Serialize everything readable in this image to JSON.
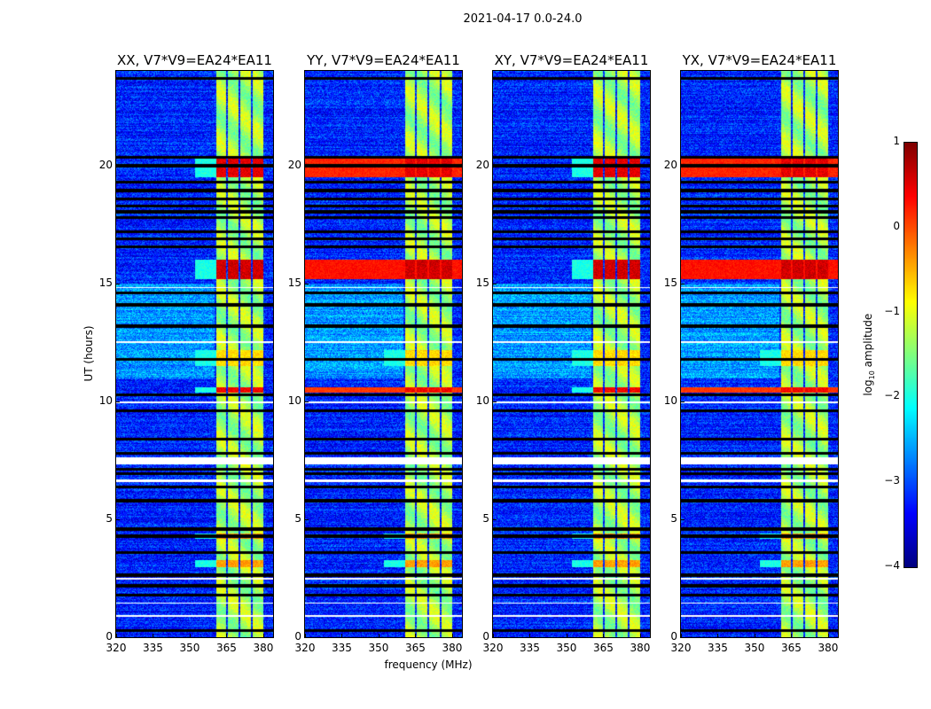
{
  "suptitle": "2021-04-17 0.0-24.0",
  "chart_data": {
    "type": "heatmap",
    "suptitle": "2021-04-17 0.0-24.0",
    "xlabel": "frequency (MHz)",
    "ylabel": "UT (hours)",
    "xlim": [
      320,
      384
    ],
    "ylim": [
      0,
      24
    ],
    "xticks": [
      "320",
      "335",
      "350",
      "365",
      "380"
    ],
    "xtick_values": [
      320,
      335,
      350,
      365,
      380
    ],
    "yticks": [
      "0",
      "5",
      "10",
      "15",
      "20"
    ],
    "ytick_values": [
      0,
      5,
      10,
      15,
      20
    ],
    "panels": [
      {
        "title": "XX, V7*V9=EA24*EA11",
        "pol": "XX",
        "full_band_events": false
      },
      {
        "title": "YY, V7*V9=EA24*EA11",
        "pol": "YY",
        "full_band_events": true
      },
      {
        "title": "XY, V7*V9=EA24*EA11",
        "pol": "XY",
        "full_band_events": false
      },
      {
        "title": "YX, V7*V9=EA24*EA11",
        "pol": "YX",
        "full_band_events": true
      }
    ],
    "bright_band_mhz": [
      360.5,
      380
    ],
    "band_gaps_mhz": [
      365,
      370,
      375
    ],
    "background_level": -3.2,
    "band_level": -1.3,
    "events_hours": [
      [
        15.2,
        16.0,
        0.6
      ],
      [
        19.5,
        20.3,
        0.5
      ],
      [
        10.4,
        10.6,
        0.4
      ],
      [
        4.2,
        4.4,
        -0.3
      ],
      [
        3.0,
        3.3,
        -0.4
      ],
      [
        11.5,
        12.2,
        -0.7
      ]
    ],
    "flagged_black_hours": [
      23.7,
      20.35,
      20.0,
      19.3,
      18.95,
      18.6,
      18.3,
      18.05,
      17.8,
      17.2,
      16.9,
      16.55,
      14.6,
      14.1,
      13.2,
      11.8,
      10.3,
      9.6,
      8.4,
      7.8,
      7.15,
      6.95,
      6.4,
      5.8,
      4.6,
      4.3,
      3.6,
      2.65,
      2.2,
      1.8,
      0.3
    ],
    "flagged_white_hours": [
      [
        7.35,
        7.65
      ],
      [
        6.6,
        6.7
      ],
      [
        2.45,
        2.55
      ],
      [
        1.45,
        1.5
      ],
      [
        0.9,
        0.95
      ],
      [
        12.5,
        12.55
      ],
      [
        14.8,
        14.85
      ],
      [
        9.95,
        10.0
      ]
    ],
    "colorbar": {
      "label": "log10 amplitude",
      "label_main": "log",
      "label_sub": "10",
      "label_rest": " amplitude",
      "range": [
        -4,
        1
      ],
      "ticks": [
        "1",
        "0",
        "−1",
        "−2",
        "−3",
        "−4"
      ],
      "tick_values": [
        1,
        0,
        -1,
        -2,
        -3,
        -4
      ],
      "colormap": "jet"
    }
  }
}
